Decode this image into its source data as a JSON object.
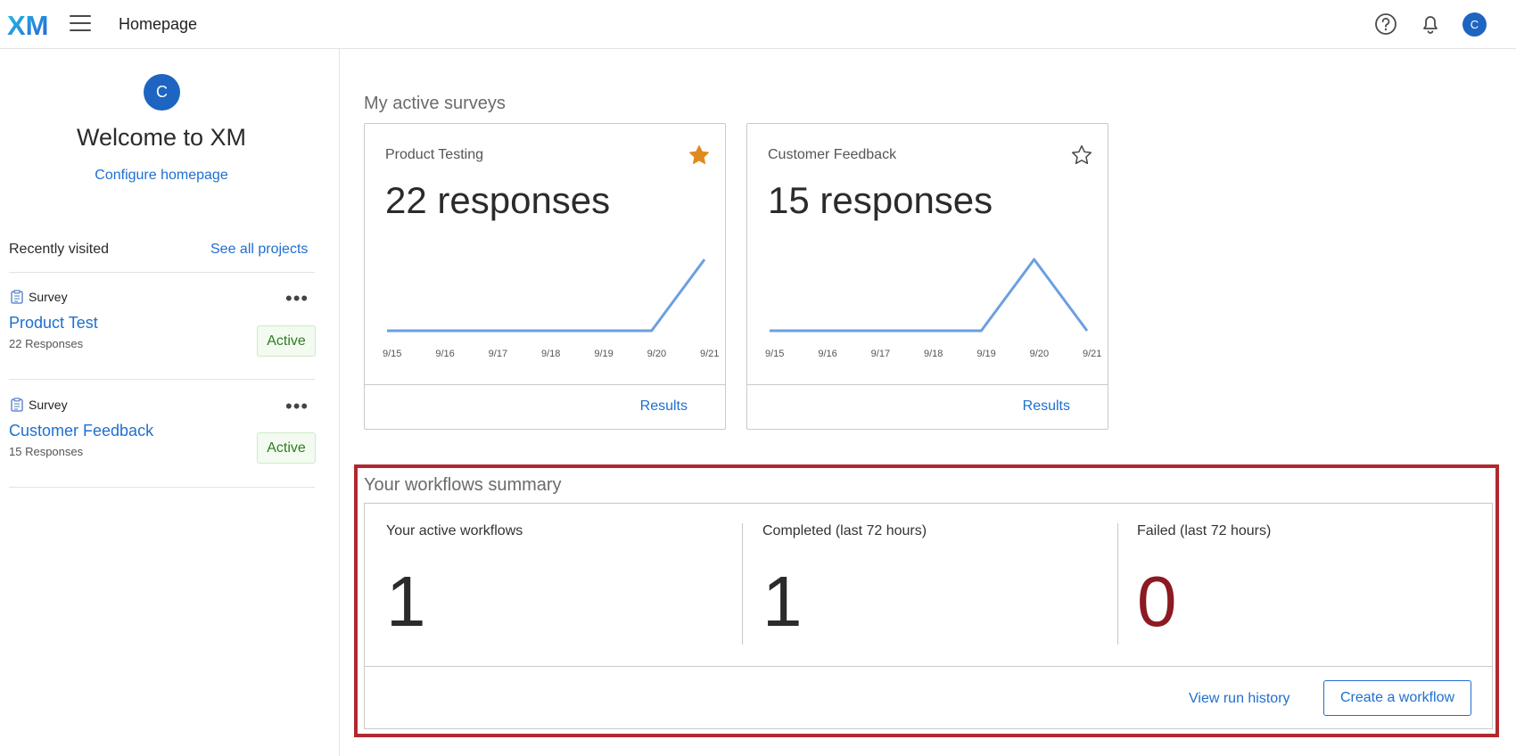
{
  "header": {
    "logo_text": "XM",
    "page_title": "Homepage",
    "user_initial": "C"
  },
  "sidebar": {
    "user_initial": "C",
    "welcome": "Welcome to XM",
    "configure_link": "Configure homepage",
    "recent_label": "Recently visited",
    "see_all_link": "See all projects",
    "projects": [
      {
        "type": "Survey",
        "name": "Product Test",
        "responses": "22 Responses",
        "status": "Active"
      },
      {
        "type": "Survey",
        "name": "Customer Feedback",
        "responses": "15 Responses",
        "status": "Active"
      }
    ]
  },
  "surveys": {
    "title": "My active surveys",
    "cards": [
      {
        "name": "Product Testing",
        "count": "22 responses",
        "starred": true,
        "results_link": "Results",
        "dates": [
          "9/15",
          "9/16",
          "9/17",
          "9/18",
          "9/19",
          "9/20",
          "9/21"
        ],
        "values": [
          0,
          0,
          0,
          0,
          0,
          0,
          22
        ]
      },
      {
        "name": "Customer Feedback",
        "count": "15 responses",
        "starred": false,
        "results_link": "Results",
        "dates": [
          "9/15",
          "9/16",
          "9/17",
          "9/18",
          "9/19",
          "9/20",
          "9/21"
        ],
        "values": [
          0,
          0,
          0,
          0,
          0,
          15,
          0
        ]
      }
    ]
  },
  "workflows": {
    "title": "Your workflows summary",
    "stats": [
      {
        "label": "Your active workflows",
        "value": "1"
      },
      {
        "label": "Completed (last 72 hours)",
        "value": "1"
      },
      {
        "label": "Failed (last 72 hours)",
        "value": "0"
      }
    ],
    "view_history": "View run history",
    "create_button": "Create a workflow"
  },
  "colors": {
    "accent": "#1f6fd0",
    "failed": "#8b1a22",
    "star_active": "#e08a1e",
    "highlight": "#b1282f",
    "spark": "#6b9fe0"
  },
  "icons": {
    "help": "help-circle-icon",
    "notifications": "bell-icon",
    "survey": "clipboard-icon",
    "more": "more-horizontal-icon",
    "favorite": "star-icon"
  }
}
